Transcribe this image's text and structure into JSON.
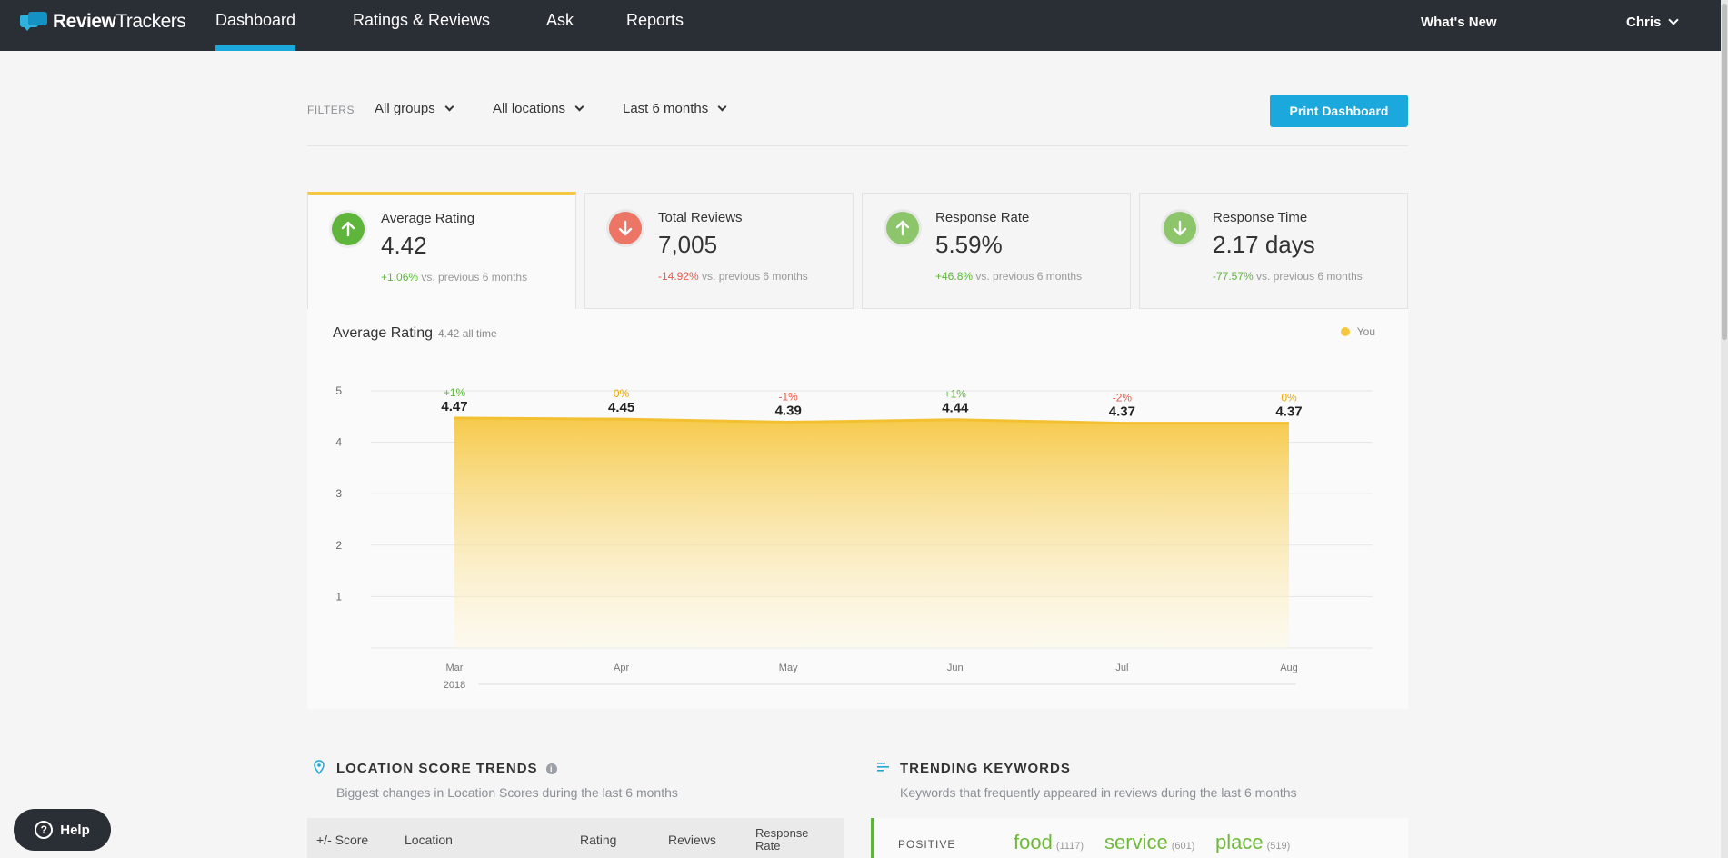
{
  "brand": {
    "name_a": "Review",
    "name_b": "Trackers"
  },
  "nav": {
    "items": [
      {
        "label": "Dashboard",
        "active": true
      },
      {
        "label": "Ratings & Reviews",
        "active": false
      },
      {
        "label": "Ask",
        "active": false
      },
      {
        "label": "Reports",
        "active": false
      }
    ],
    "whats_new": "What's New",
    "user": "Chris"
  },
  "filters": {
    "label": "FILTERS",
    "groups": "All groups",
    "locations": "All locations",
    "period": "Last 6 months"
  },
  "print_button": "Print Dashboard",
  "kpis": [
    {
      "label": "Average Rating",
      "value": "4.42",
      "change": "+1.06%",
      "change_suffix": "vs. previous 6 months",
      "direction": "up",
      "icon_color": "#5fb53b"
    },
    {
      "label": "Total Reviews",
      "value": "7,005",
      "change": "-14.92%",
      "change_suffix": "vs. previous 6 months",
      "direction": "down",
      "icon_color": "#ec7565"
    },
    {
      "label": "Response Rate",
      "value": "5.59%",
      "change": "+46.8%",
      "change_suffix": "vs. previous 6 months",
      "direction": "up",
      "icon_color": "#8cc56a"
    },
    {
      "label": "Response Time",
      "value": "2.17 days",
      "change": "-77.57%",
      "change_suffix": "vs. previous 6 months",
      "direction": "down",
      "icon_color": "#8cc56a"
    }
  ],
  "chart_panel": {
    "title": "Average Rating",
    "subtitle": "4.42 all time",
    "legend": "You"
  },
  "chart_data": {
    "type": "area",
    "title": "Average Rating",
    "categories": [
      "Mar",
      "Apr",
      "May",
      "Jun",
      "Jul",
      "Aug"
    ],
    "year_label": "2018",
    "series": [
      {
        "name": "You",
        "values": [
          4.47,
          4.45,
          4.39,
          4.44,
          4.37,
          4.37
        ],
        "color": "#f6c741"
      }
    ],
    "changes": [
      "+1%",
      "0%",
      "-1%",
      "+1%",
      "-2%",
      "0%"
    ],
    "change_colors": [
      "#5fb53b",
      "#e9a800",
      "#ec5a4a",
      "#5fb53b",
      "#ec5a4a",
      "#e9a800"
    ],
    "yticks": [
      1,
      2,
      3,
      4,
      5
    ],
    "ylim": [
      0,
      5
    ],
    "grid": true,
    "legend_position": "top-right"
  },
  "location_trends": {
    "title": "LOCATION SCORE TRENDS",
    "subtitle": "Biggest changes in Location Scores during the last 6 months",
    "columns": [
      "+/- Score",
      "Location",
      "Rating",
      "Reviews",
      "Response Rate"
    ]
  },
  "trending_keywords": {
    "title": "TRENDING KEYWORDS",
    "subtitle": "Keywords that frequently appeared in reviews during the last 6 months",
    "positive_label": "POSITIVE",
    "positive": [
      {
        "word": "food",
        "count": "(1117)"
      },
      {
        "word": "service",
        "count": "(601)"
      },
      {
        "word": "place",
        "count": "(519)"
      }
    ]
  },
  "help_button": "Help"
}
